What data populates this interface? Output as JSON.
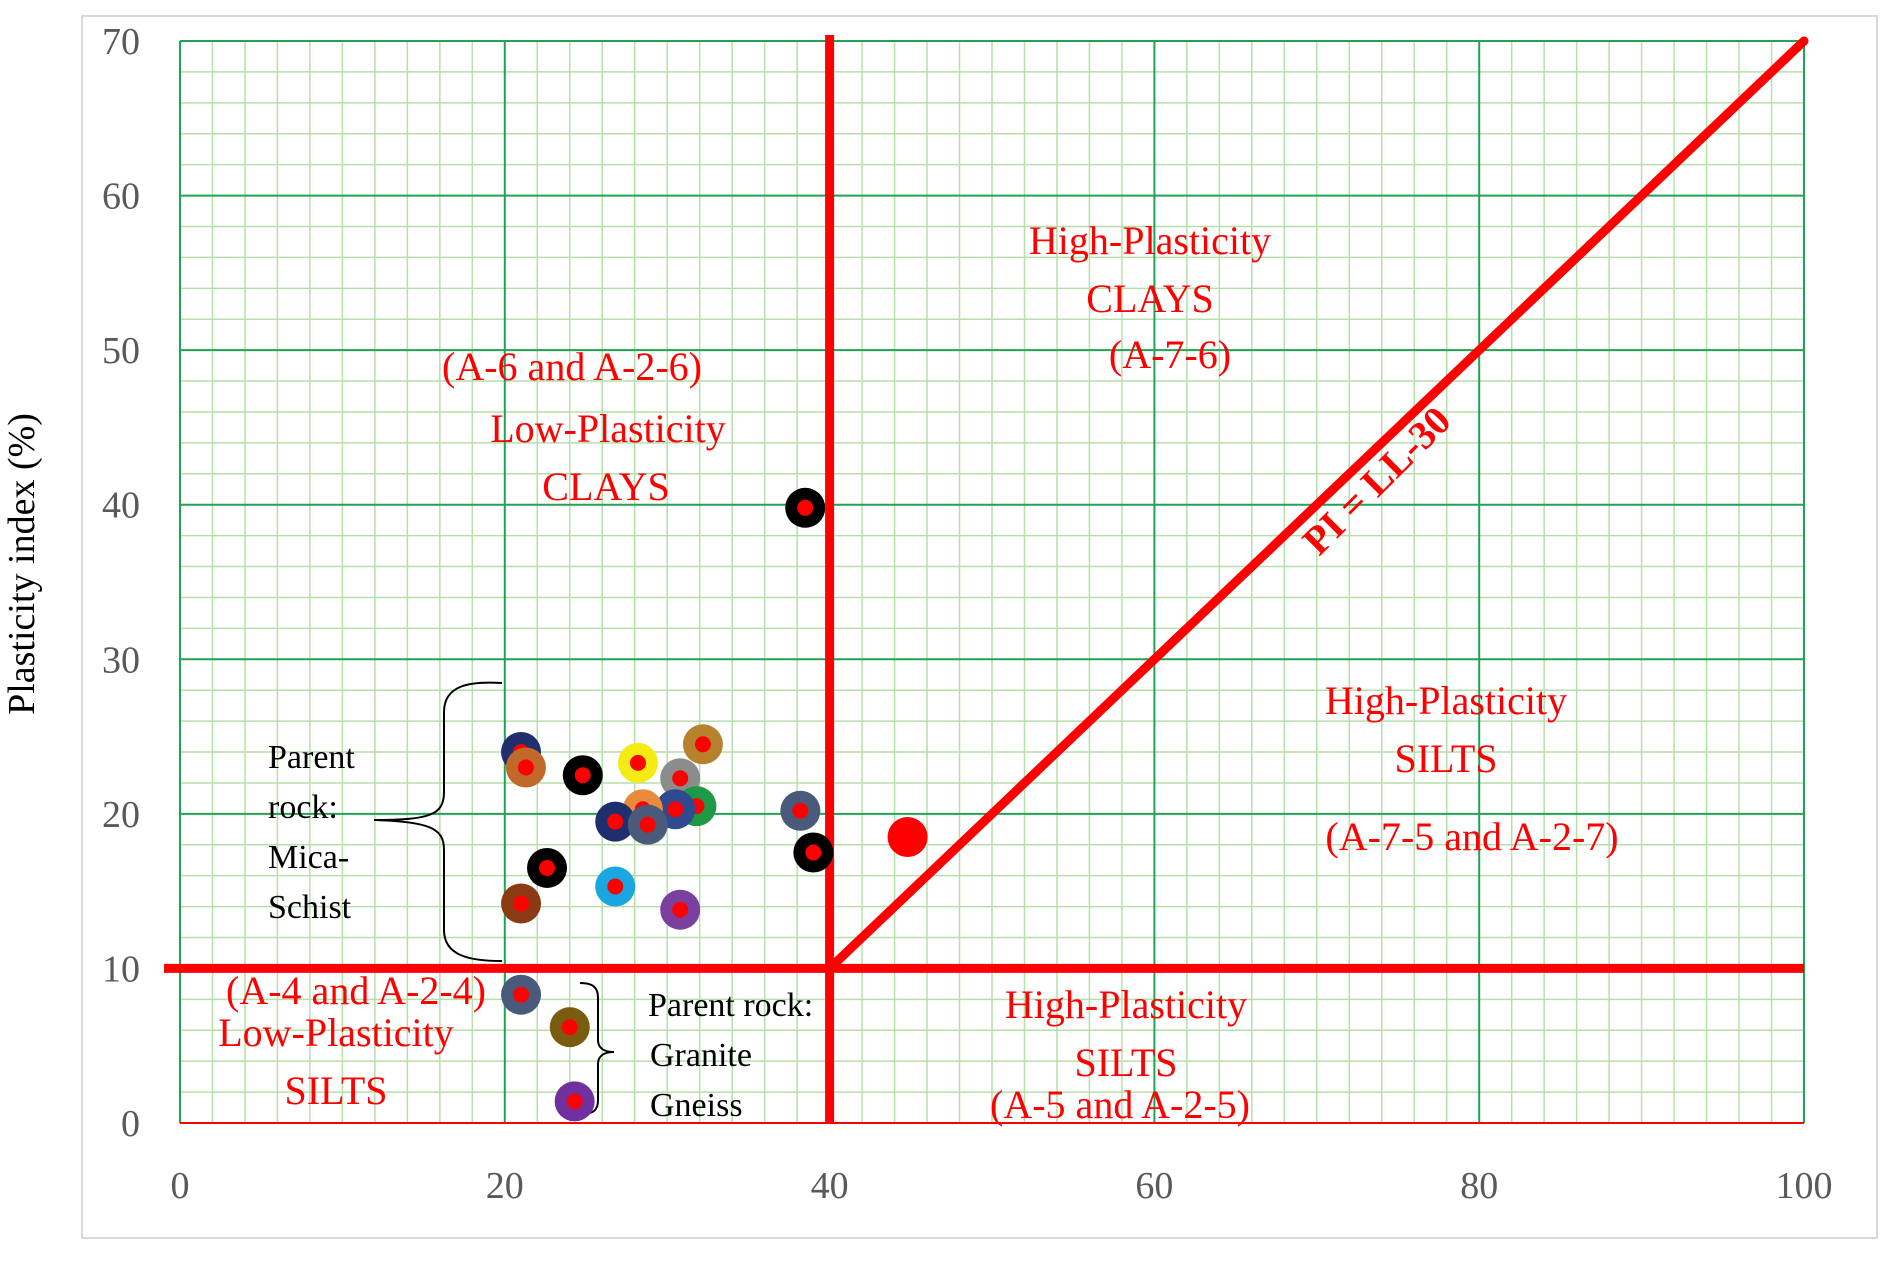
{
  "chart_data": {
    "type": "scatter",
    "title": "",
    "xlabel": "",
    "ylabel": "Plasticity index (%)",
    "xlim": [
      0,
      100
    ],
    "ylim": [
      0,
      70
    ],
    "x_ticks": [
      0,
      20,
      40,
      60,
      80,
      100
    ],
    "y_ticks": [
      0,
      10,
      20,
      30,
      40,
      50,
      60,
      70
    ],
    "grid": true,
    "legend": "none",
    "series": [
      {
        "group": "Mica-Schist",
        "points": [
          {
            "x": 21.0,
            "y": 24.0,
            "ring": "#1f2f6e"
          },
          {
            "x": 21.3,
            "y": 23.0,
            "ring": "#c0692a"
          },
          {
            "x": 24.8,
            "y": 22.5,
            "ring": "#000000"
          },
          {
            "x": 28.2,
            "y": 23.3,
            "ring": "#f6ea13"
          },
          {
            "x": 32.2,
            "y": 24.5,
            "ring": "#b6822d"
          },
          {
            "x": 30.8,
            "y": 22.3,
            "ring": "#8c8c8c"
          },
          {
            "x": 31.8,
            "y": 20.5,
            "ring": "#1e9a46"
          },
          {
            "x": 30.5,
            "y": 20.3,
            "ring": "#2f4a8e"
          },
          {
            "x": 28.5,
            "y": 20.3,
            "ring": "#e98b3d"
          },
          {
            "x": 26.8,
            "y": 19.5,
            "ring": "#1f2f6e"
          },
          {
            "x": 28.8,
            "y": 19.3,
            "ring": "#4a5a7a"
          },
          {
            "x": 38.2,
            "y": 20.2,
            "ring": "#4a5a7a"
          },
          {
            "x": 38.5,
            "y": 39.8,
            "ring": "#000000"
          },
          {
            "x": 39.0,
            "y": 17.5,
            "ring": "#000000"
          },
          {
            "x": 22.6,
            "y": 16.5,
            "ring": "#000000"
          },
          {
            "x": 26.8,
            "y": 15.3,
            "ring": "#1aa6e0"
          },
          {
            "x": 30.8,
            "y": 13.8,
            "ring": "#7b3fa0"
          },
          {
            "x": 21.0,
            "y": 14.2,
            "ring": "#8b3a14"
          },
          {
            "x": 44.8,
            "y": 18.5,
            "ring": "#ff0000"
          }
        ]
      },
      {
        "group": "Granite Gneiss",
        "points": [
          {
            "x": 21.0,
            "y": 8.3,
            "ring": "#4a5a7a"
          },
          {
            "x": 24.0,
            "y": 6.2,
            "ring": "#7a5c10"
          },
          {
            "x": 24.3,
            "y": 1.4,
            "ring": "#7030a0"
          }
        ]
      }
    ],
    "reference_lines": [
      {
        "label": "PI = LL-30",
        "from": [
          40,
          10
        ],
        "to": [
          100,
          70
        ]
      }
    ],
    "zone_labels": {
      "low_clays": [
        "(A-6 and A-2-6)",
        "Low-Plasticity",
        "CLAYS"
      ],
      "high_clays": [
        "High-Plasticity",
        "CLAYS",
        "(A-7-6)"
      ],
      "high_silts_right": [
        "High-Plasticity",
        "SILTS",
        "(A-7-5 and A-2-7)"
      ],
      "high_silts_bottom": [
        "High-Plasticity",
        "SILTS",
        "(A-5 and A-2-5)"
      ],
      "low_silts": [
        "(A-4 and A-2-4)",
        "Low-Plasticity",
        "SILTS"
      ]
    },
    "parent_rock_labels": {
      "mica": [
        "Parent",
        "rock:",
        "Mica-",
        "Schist"
      ],
      "granite": [
        "Parent rock:",
        "Granite",
        "Gneiss"
      ]
    },
    "colors": {
      "zone_text": "#ff0000",
      "boundary": "#ff0000",
      "major_grid": "#22a352",
      "minor_grid": "#b6dfaa",
      "point_center": "#ff0000"
    }
  }
}
